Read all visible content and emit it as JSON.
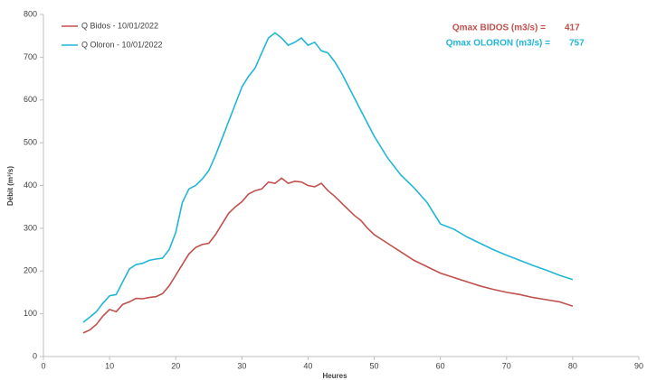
{
  "chart_data": {
    "type": "line",
    "xlabel": "Heures",
    "ylabel": "Débit (m³/s)",
    "x": [
      6,
      7,
      8,
      9,
      10,
      11,
      12,
      13,
      14,
      15,
      16,
      17,
      18,
      19,
      20,
      21,
      22,
      23,
      24,
      25,
      26,
      27,
      28,
      29,
      30,
      31,
      32,
      33,
      34,
      35,
      36,
      37,
      38,
      39,
      40,
      41,
      42,
      43,
      44,
      45,
      46,
      47,
      48,
      49,
      50,
      52,
      54,
      56,
      58,
      60,
      62,
      64,
      66,
      68,
      70,
      72,
      74,
      76,
      78,
      80
    ],
    "series": [
      {
        "name": "Q Bidos - 10/01/2022",
        "color": "#c0504d",
        "values": [
          55,
          62,
          75,
          95,
          110,
          105,
          122,
          128,
          136,
          135,
          138,
          140,
          147,
          165,
          190,
          215,
          240,
          255,
          262,
          265,
          285,
          310,
          335,
          350,
          362,
          380,
          388,
          392,
          408,
          405,
          417,
          405,
          410,
          408,
          400,
          397,
          405,
          388,
          375,
          360,
          345,
          330,
          318,
          300,
          285,
          265,
          245,
          225,
          210,
          195,
          185,
          175,
          165,
          157,
          150,
          145,
          138,
          133,
          128,
          118
        ]
      },
      {
        "name": "Q Oloron - 10/01/2022",
        "color": "#21b6d7",
        "values": [
          80,
          92,
          105,
          125,
          142,
          145,
          175,
          205,
          215,
          218,
          225,
          228,
          230,
          250,
          290,
          360,
          392,
          400,
          415,
          435,
          470,
          510,
          550,
          590,
          630,
          655,
          675,
          710,
          745,
          757,
          745,
          728,
          735,
          745,
          728,
          735,
          715,
          710,
          690,
          665,
          635,
          605,
          575,
          545,
          515,
          465,
          425,
          395,
          360,
          310,
          298,
          280,
          265,
          250,
          237,
          225,
          213,
          202,
          190,
          180
        ]
      }
    ],
    "annotations": [
      {
        "text": "Qmax BIDOS (m3/s) =",
        "value": 417
      },
      {
        "text": "Qmax OLORON (m3/s) =",
        "value": 757
      }
    ],
    "xlim": [
      0,
      90
    ],
    "xticks": [
      0,
      10,
      20,
      30,
      40,
      50,
      60,
      70,
      80,
      90
    ],
    "ylim": [
      0,
      800
    ],
    "yticks": [
      0,
      100,
      200,
      300,
      400,
      500,
      600,
      700,
      800
    ],
    "grid": false,
    "legend": "upper left"
  }
}
